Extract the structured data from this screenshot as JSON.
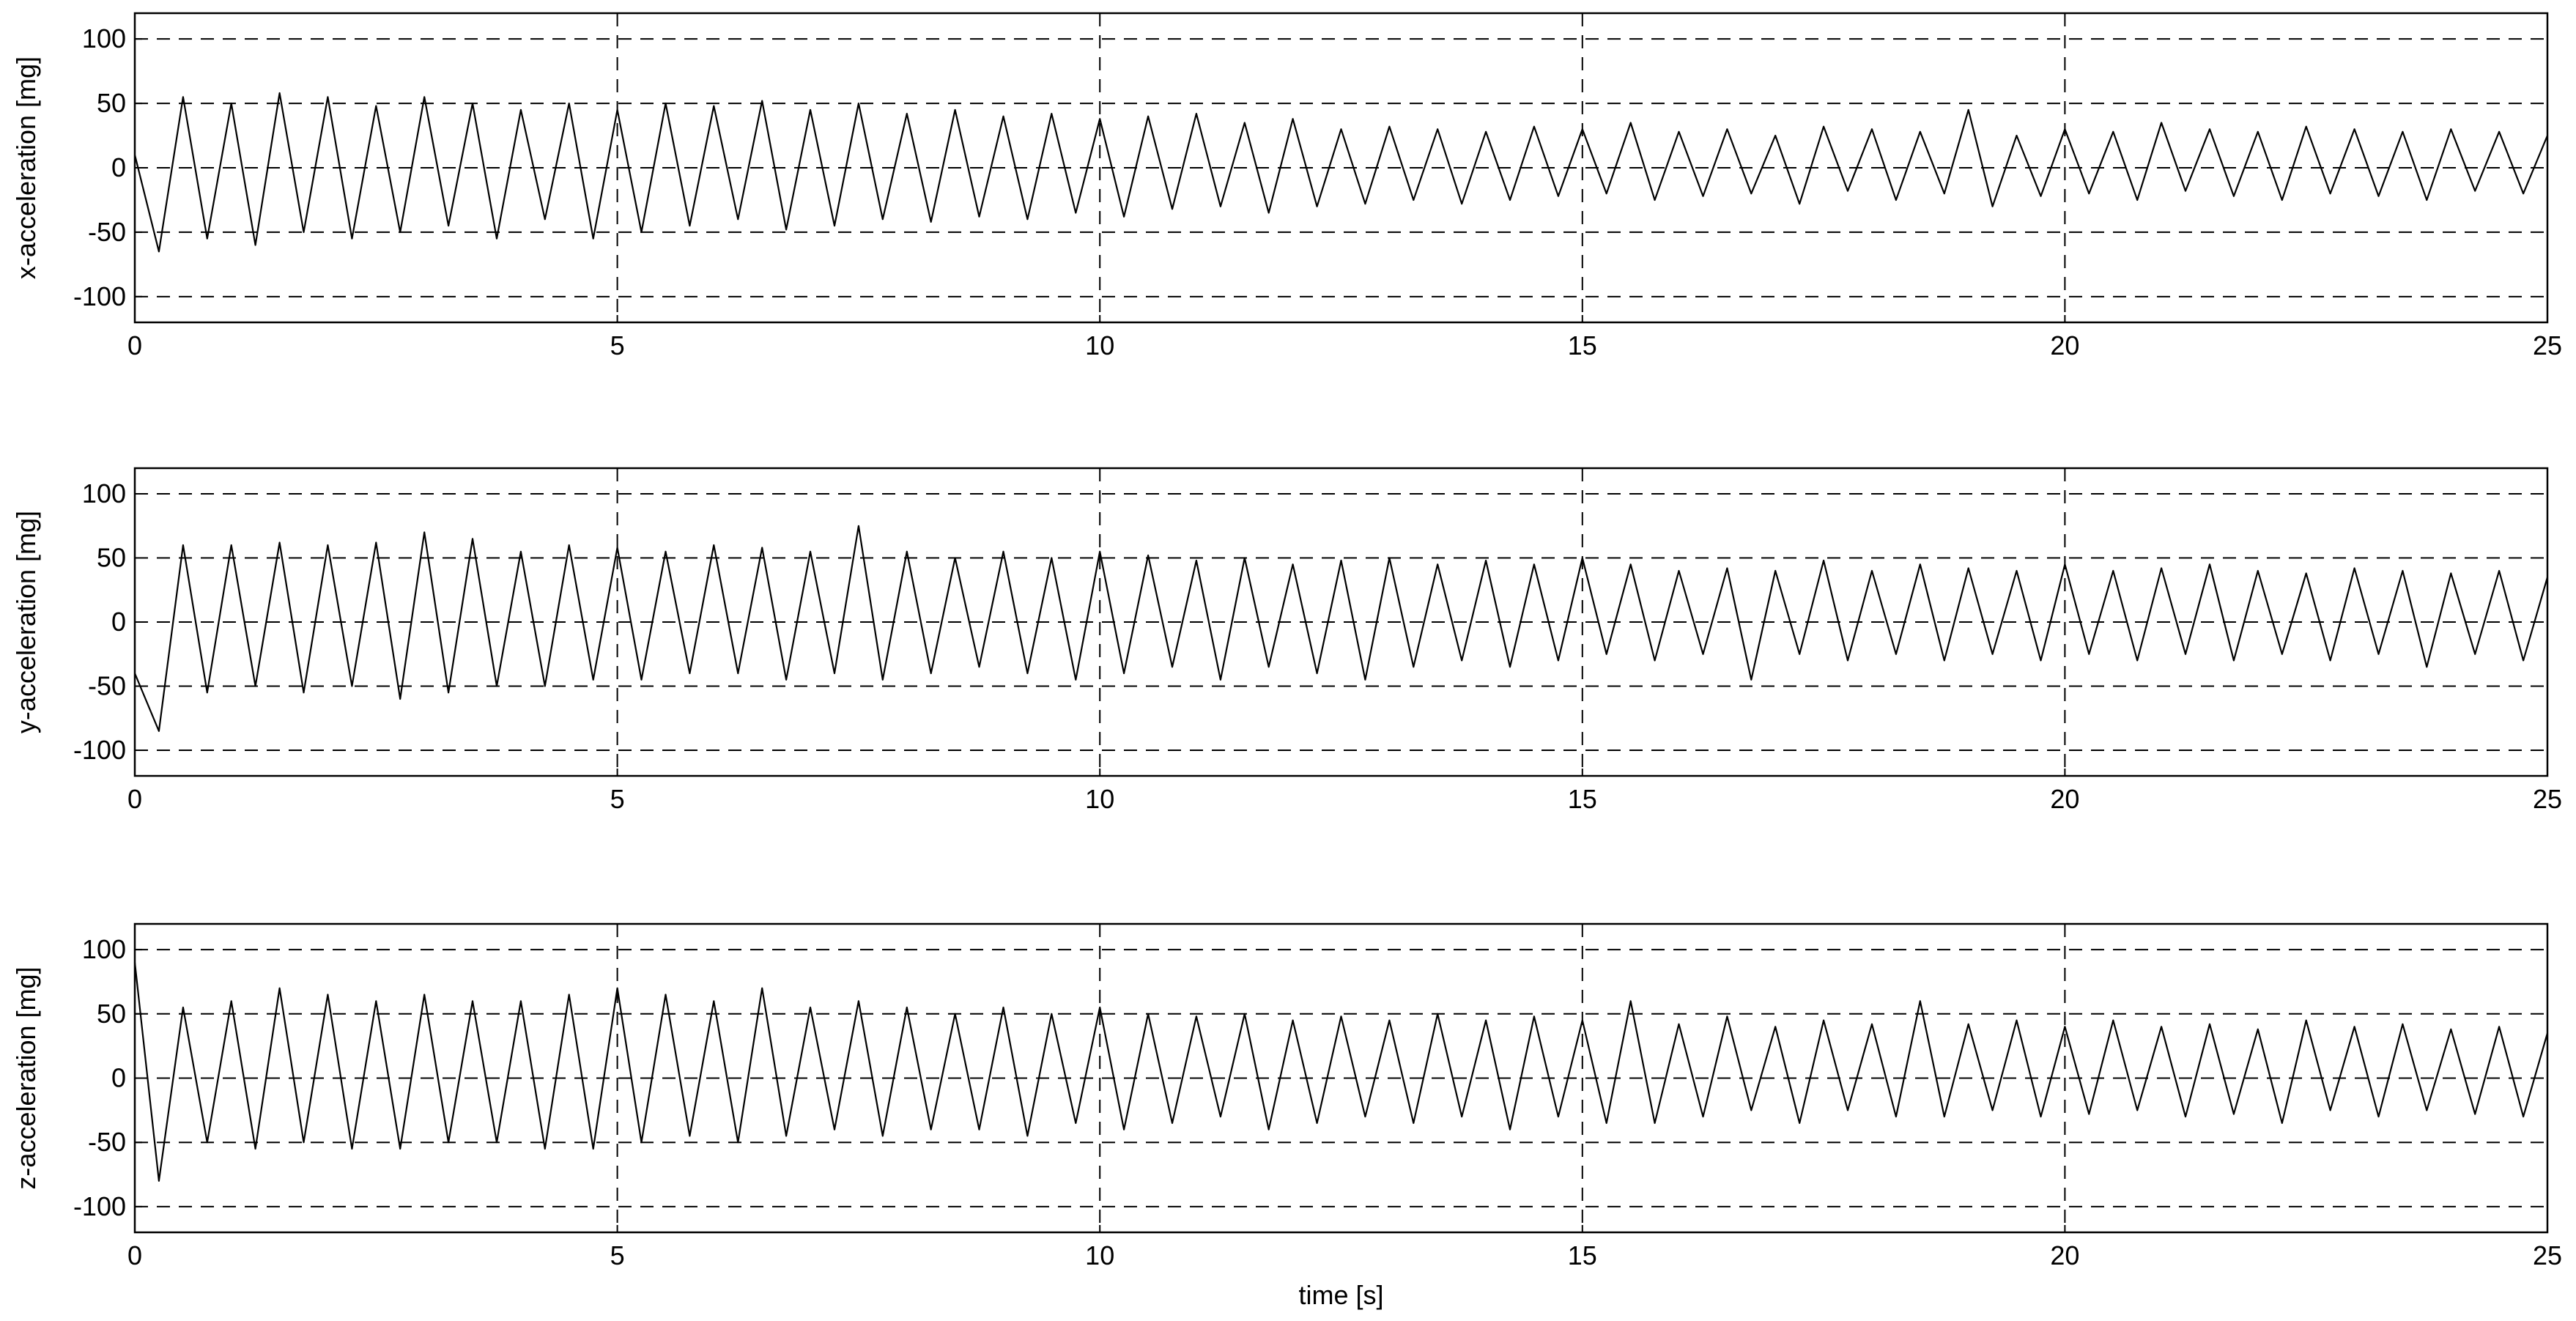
{
  "chart_data": [
    {
      "type": "line",
      "y_label": "x-acceleration [mg]",
      "xlim": [
        0,
        25
      ],
      "ylim": [
        -120,
        120
      ],
      "xticks": [
        0,
        5,
        10,
        15,
        20,
        25
      ],
      "yticks": [
        -100,
        -50,
        0,
        50,
        100
      ],
      "grid": true,
      "color": "#000000",
      "x": [
        0,
        0.25,
        0.5,
        0.75,
        1,
        1.25,
        1.5,
        1.75,
        2,
        2.25,
        2.5,
        2.75,
        3,
        3.25,
        3.5,
        3.75,
        4,
        4.25,
        4.5,
        4.75,
        5,
        5.25,
        5.5,
        5.75,
        6,
        6.25,
        6.5,
        6.75,
        7,
        7.25,
        7.5,
        7.75,
        8,
        8.25,
        8.5,
        8.75,
        9,
        9.25,
        9.5,
        9.75,
        10,
        10.25,
        10.5,
        10.75,
        11,
        11.25,
        11.5,
        11.75,
        12,
        12.25,
        12.5,
        12.75,
        13,
        13.25,
        13.5,
        13.75,
        14,
        14.25,
        14.5,
        14.75,
        15,
        15.25,
        15.5,
        15.75,
        16,
        16.25,
        16.5,
        16.75,
        17,
        17.25,
        17.5,
        17.75,
        18,
        18.25,
        18.5,
        18.75,
        19,
        19.25,
        19.5,
        19.75,
        20,
        20.25,
        20.5,
        20.75,
        21,
        21.25,
        21.5,
        21.75,
        22,
        22.25,
        22.5,
        22.75,
        23,
        23.25,
        23.5,
        23.75,
        24,
        24.25,
        24.5,
        24.75,
        25
      ],
      "values": [
        10,
        -65,
        55,
        -55,
        50,
        -60,
        58,
        -50,
        55,
        -55,
        48,
        -50,
        55,
        -45,
        50,
        -55,
        45,
        -40,
        50,
        -55,
        45,
        -50,
        50,
        -45,
        48,
        -40,
        52,
        -48,
        45,
        -45,
        50,
        -40,
        42,
        -42,
        45,
        -38,
        40,
        -40,
        42,
        -35,
        38,
        -38,
        40,
        -32,
        42,
        -30,
        35,
        -35,
        38,
        -30,
        30,
        -28,
        32,
        -25,
        30,
        -28,
        28,
        -25,
        32,
        -22,
        30,
        -20,
        35,
        -25,
        28,
        -22,
        30,
        -20,
        25,
        -28,
        32,
        -18,
        30,
        -25,
        28,
        -20,
        45,
        -30,
        25,
        -22,
        30,
        -20,
        28,
        -25,
        35,
        -18,
        30,
        -22,
        28,
        -25,
        32,
        -20,
        30,
        -22,
        28,
        -25,
        30,
        -18,
        28,
        -20,
        25
      ]
    },
    {
      "type": "line",
      "y_label": "y-acceleration [mg]",
      "xlim": [
        0,
        25
      ],
      "ylim": [
        -120,
        120
      ],
      "xticks": [
        0,
        5,
        10,
        15,
        20,
        25
      ],
      "yticks": [
        -100,
        -50,
        0,
        50,
        100
      ],
      "grid": true,
      "color": "#000000",
      "x": [
        0,
        0.25,
        0.5,
        0.75,
        1,
        1.25,
        1.5,
        1.75,
        2,
        2.25,
        2.5,
        2.75,
        3,
        3.25,
        3.5,
        3.75,
        4,
        4.25,
        4.5,
        4.75,
        5,
        5.25,
        5.5,
        5.75,
        6,
        6.25,
        6.5,
        6.75,
        7,
        7.25,
        7.5,
        7.75,
        8,
        8.25,
        8.5,
        8.75,
        9,
        9.25,
        9.5,
        9.75,
        10,
        10.25,
        10.5,
        10.75,
        11,
        11.25,
        11.5,
        11.75,
        12,
        12.25,
        12.5,
        12.75,
        13,
        13.25,
        13.5,
        13.75,
        14,
        14.25,
        14.5,
        14.75,
        15,
        15.25,
        15.5,
        15.75,
        16,
        16.25,
        16.5,
        16.75,
        17,
        17.25,
        17.5,
        17.75,
        18,
        18.25,
        18.5,
        18.75,
        19,
        19.25,
        19.5,
        19.75,
        20,
        20.25,
        20.5,
        20.75,
        21,
        21.25,
        21.5,
        21.75,
        22,
        22.25,
        22.5,
        22.75,
        23,
        23.25,
        23.5,
        23.75,
        24,
        24.25,
        24.5,
        24.75,
        25
      ],
      "values": [
        -40,
        -85,
        60,
        -55,
        60,
        -50,
        62,
        -55,
        60,
        -50,
        62,
        -60,
        70,
        -55,
        65,
        -50,
        55,
        -50,
        60,
        -45,
        58,
        -45,
        55,
        -40,
        60,
        -40,
        58,
        -45,
        55,
        -40,
        75,
        -45,
        55,
        -40,
        50,
        -35,
        55,
        -40,
        50,
        -45,
        55,
        -40,
        52,
        -35,
        48,
        -45,
        50,
        -35,
        45,
        -40,
        48,
        -45,
        50,
        -35,
        45,
        -30,
        48,
        -35,
        45,
        -30,
        50,
        -25,
        45,
        -30,
        40,
        -25,
        42,
        -45,
        40,
        -25,
        48,
        -30,
        40,
        -25,
        45,
        -30,
        42,
        -25,
        40,
        -30,
        45,
        -25,
        40,
        -30,
        42,
        -25,
        45,
        -30,
        40,
        -25,
        38,
        -30,
        42,
        -25,
        40,
        -35,
        38,
        -25,
        40,
        -30,
        35
      ]
    },
    {
      "type": "line",
      "y_label": "z-acceleration [mg]",
      "x_label": "time [s]",
      "xlim": [
        0,
        25
      ],
      "ylim": [
        -120,
        120
      ],
      "xticks": [
        0,
        5,
        10,
        15,
        20,
        25
      ],
      "yticks": [
        -100,
        -50,
        0,
        50,
        100
      ],
      "grid": true,
      "color": "#000000",
      "x": [
        0,
        0.25,
        0.5,
        0.75,
        1,
        1.25,
        1.5,
        1.75,
        2,
        2.25,
        2.5,
        2.75,
        3,
        3.25,
        3.5,
        3.75,
        4,
        4.25,
        4.5,
        4.75,
        5,
        5.25,
        5.5,
        5.75,
        6,
        6.25,
        6.5,
        6.75,
        7,
        7.25,
        7.5,
        7.75,
        8,
        8.25,
        8.5,
        8.75,
        9,
        9.25,
        9.5,
        9.75,
        10,
        10.25,
        10.5,
        10.75,
        11,
        11.25,
        11.5,
        11.75,
        12,
        12.25,
        12.5,
        12.75,
        13,
        13.25,
        13.5,
        13.75,
        14,
        14.25,
        14.5,
        14.75,
        15,
        15.25,
        15.5,
        15.75,
        16,
        16.25,
        16.5,
        16.75,
        17,
        17.25,
        17.5,
        17.75,
        18,
        18.25,
        18.5,
        18.75,
        19,
        19.25,
        19.5,
        19.75,
        20,
        20.25,
        20.5,
        20.75,
        21,
        21.25,
        21.5,
        21.75,
        22,
        22.25,
        22.5,
        22.75,
        23,
        23.25,
        23.5,
        23.75,
        24,
        24.25,
        24.5,
        24.75,
        25
      ],
      "values": [
        90,
        -80,
        55,
        -50,
        60,
        -55,
        70,
        -50,
        65,
        -55,
        60,
        -55,
        65,
        -50,
        60,
        -50,
        60,
        -55,
        65,
        -55,
        70,
        -50,
        65,
        -45,
        60,
        -50,
        70,
        -45,
        55,
        -40,
        60,
        -45,
        55,
        -40,
        50,
        -40,
        55,
        -45,
        50,
        -35,
        55,
        -40,
        50,
        -35,
        48,
        -30,
        50,
        -40,
        45,
        -35,
        48,
        -30,
        45,
        -35,
        50,
        -30,
        45,
        -40,
        48,
        -30,
        45,
        -35,
        60,
        -35,
        42,
        -30,
        48,
        -25,
        40,
        -35,
        45,
        -25,
        42,
        -30,
        60,
        -30,
        42,
        -25,
        45,
        -30,
        40,
        -28,
        45,
        -25,
        40,
        -30,
        42,
        -28,
        38,
        -35,
        45,
        -25,
        40,
        -30,
        42,
        -25,
        38,
        -28,
        40,
        -30,
        35
      ]
    }
  ]
}
